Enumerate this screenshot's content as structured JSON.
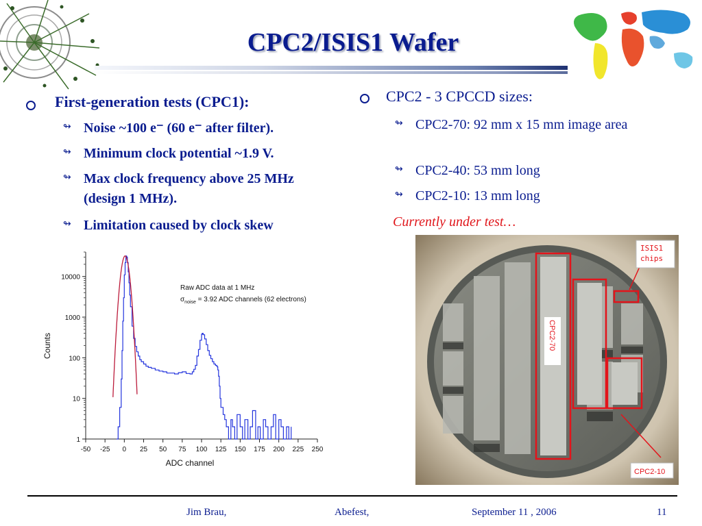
{
  "title": "CPC2/ISIS1 Wafer",
  "left": {
    "heading": "First-generation tests (CPC1):",
    "items": [
      {
        "text": "Noise ~100 e⁻ (60 e⁻ after filter)."
      },
      {
        "text": "Minimum clock potential ~1.9 V."
      },
      {
        "text": "Max clock frequency above 25 MHz (design 1 MHz)."
      },
      {
        "text": "Limitation caused by clock skew"
      }
    ]
  },
  "right": {
    "heading": "CPC2 - 3 CPCCD sizes:",
    "items": [
      {
        "text": "CPC2-70:  92 mm x 15 mm image area"
      },
      {
        "text": "CPC2-40:  53 mm long"
      },
      {
        "text": "CPC2-10:  13 mm long"
      }
    ],
    "note": "Currently under test…"
  },
  "photo": {
    "labels": {
      "isis": "ISIS1 chips",
      "cpc70": "CPC2-70",
      "cpc10": "CPC2-10"
    },
    "colors": {
      "highlight": "#e3141b",
      "ring": "#d8cfbf",
      "wafer": "#7d7f78"
    }
  },
  "footer": {
    "author": "Jim Brau,",
    "event": "Abefest,",
    "date": "September 11 , 2006",
    "page": "11"
  },
  "chart_data": {
    "type": "line",
    "xlabel": "ADC channel",
    "ylabel": "Counts",
    "scale_y": "log",
    "xlim": [
      -50,
      250
    ],
    "ylim": [
      1,
      40000
    ],
    "x_ticks": [
      -50,
      -25,
      0,
      25,
      50,
      75,
      100,
      125,
      150,
      175,
      200,
      225,
      250
    ],
    "y_ticks": [
      1,
      10,
      100,
      1000,
      10000
    ],
    "annotation_line1": "Raw ADC data at 1 MHz",
    "annotation_sigma": "σ",
    "annotation_sub": "noise",
    "annotation_rest": " = 3.92 ADC channels (62 electrons)",
    "colors": {
      "data": "#2233dd",
      "fit": "#bb1a3a"
    },
    "fit": {
      "center": 1,
      "sigma": 3.92,
      "peak": 32000
    },
    "x": [
      -10,
      -8,
      -6,
      -4,
      -3,
      -2,
      -1,
      0,
      1,
      2,
      3,
      4,
      5,
      6,
      7,
      8,
      10,
      12,
      14,
      16,
      18,
      20,
      22,
      25,
      28,
      31,
      35,
      40,
      45,
      50,
      55,
      60,
      65,
      70,
      75,
      80,
      85,
      88,
      90,
      92,
      94,
      96,
      98,
      100,
      101,
      102,
      104,
      106,
      108,
      110,
      112,
      114,
      116,
      118,
      120,
      121,
      122,
      123,
      124,
      125,
      128,
      130,
      132,
      135,
      138,
      140,
      143,
      146,
      150,
      153,
      156,
      160,
      163,
      166,
      170,
      173,
      176,
      180,
      183,
      186,
      190,
      193,
      196,
      200,
      203,
      206,
      210,
      213,
      216
    ],
    "y": [
      1,
      2,
      6,
      30,
      150,
      800,
      3000,
      11000,
      22000,
      32000,
      30000,
      22000,
      13000,
      7000,
      3500,
      1800,
      600,
      300,
      190,
      140,
      110,
      90,
      80,
      70,
      62,
      58,
      55,
      50,
      47,
      45,
      42,
      42,
      40,
      43,
      45,
      41,
      40,
      45,
      52,
      65,
      110,
      160,
      270,
      380,
      400,
      370,
      290,
      210,
      150,
      115,
      95,
      80,
      70,
      65,
      60,
      50,
      35,
      20,
      10,
      6,
      4,
      3,
      2,
      1,
      3,
      2,
      1,
      4,
      2,
      1,
      3,
      1,
      2,
      5,
      1,
      2,
      1,
      3,
      2,
      1,
      2,
      4,
      1,
      3,
      2,
      1,
      2,
      1,
      2
    ]
  }
}
